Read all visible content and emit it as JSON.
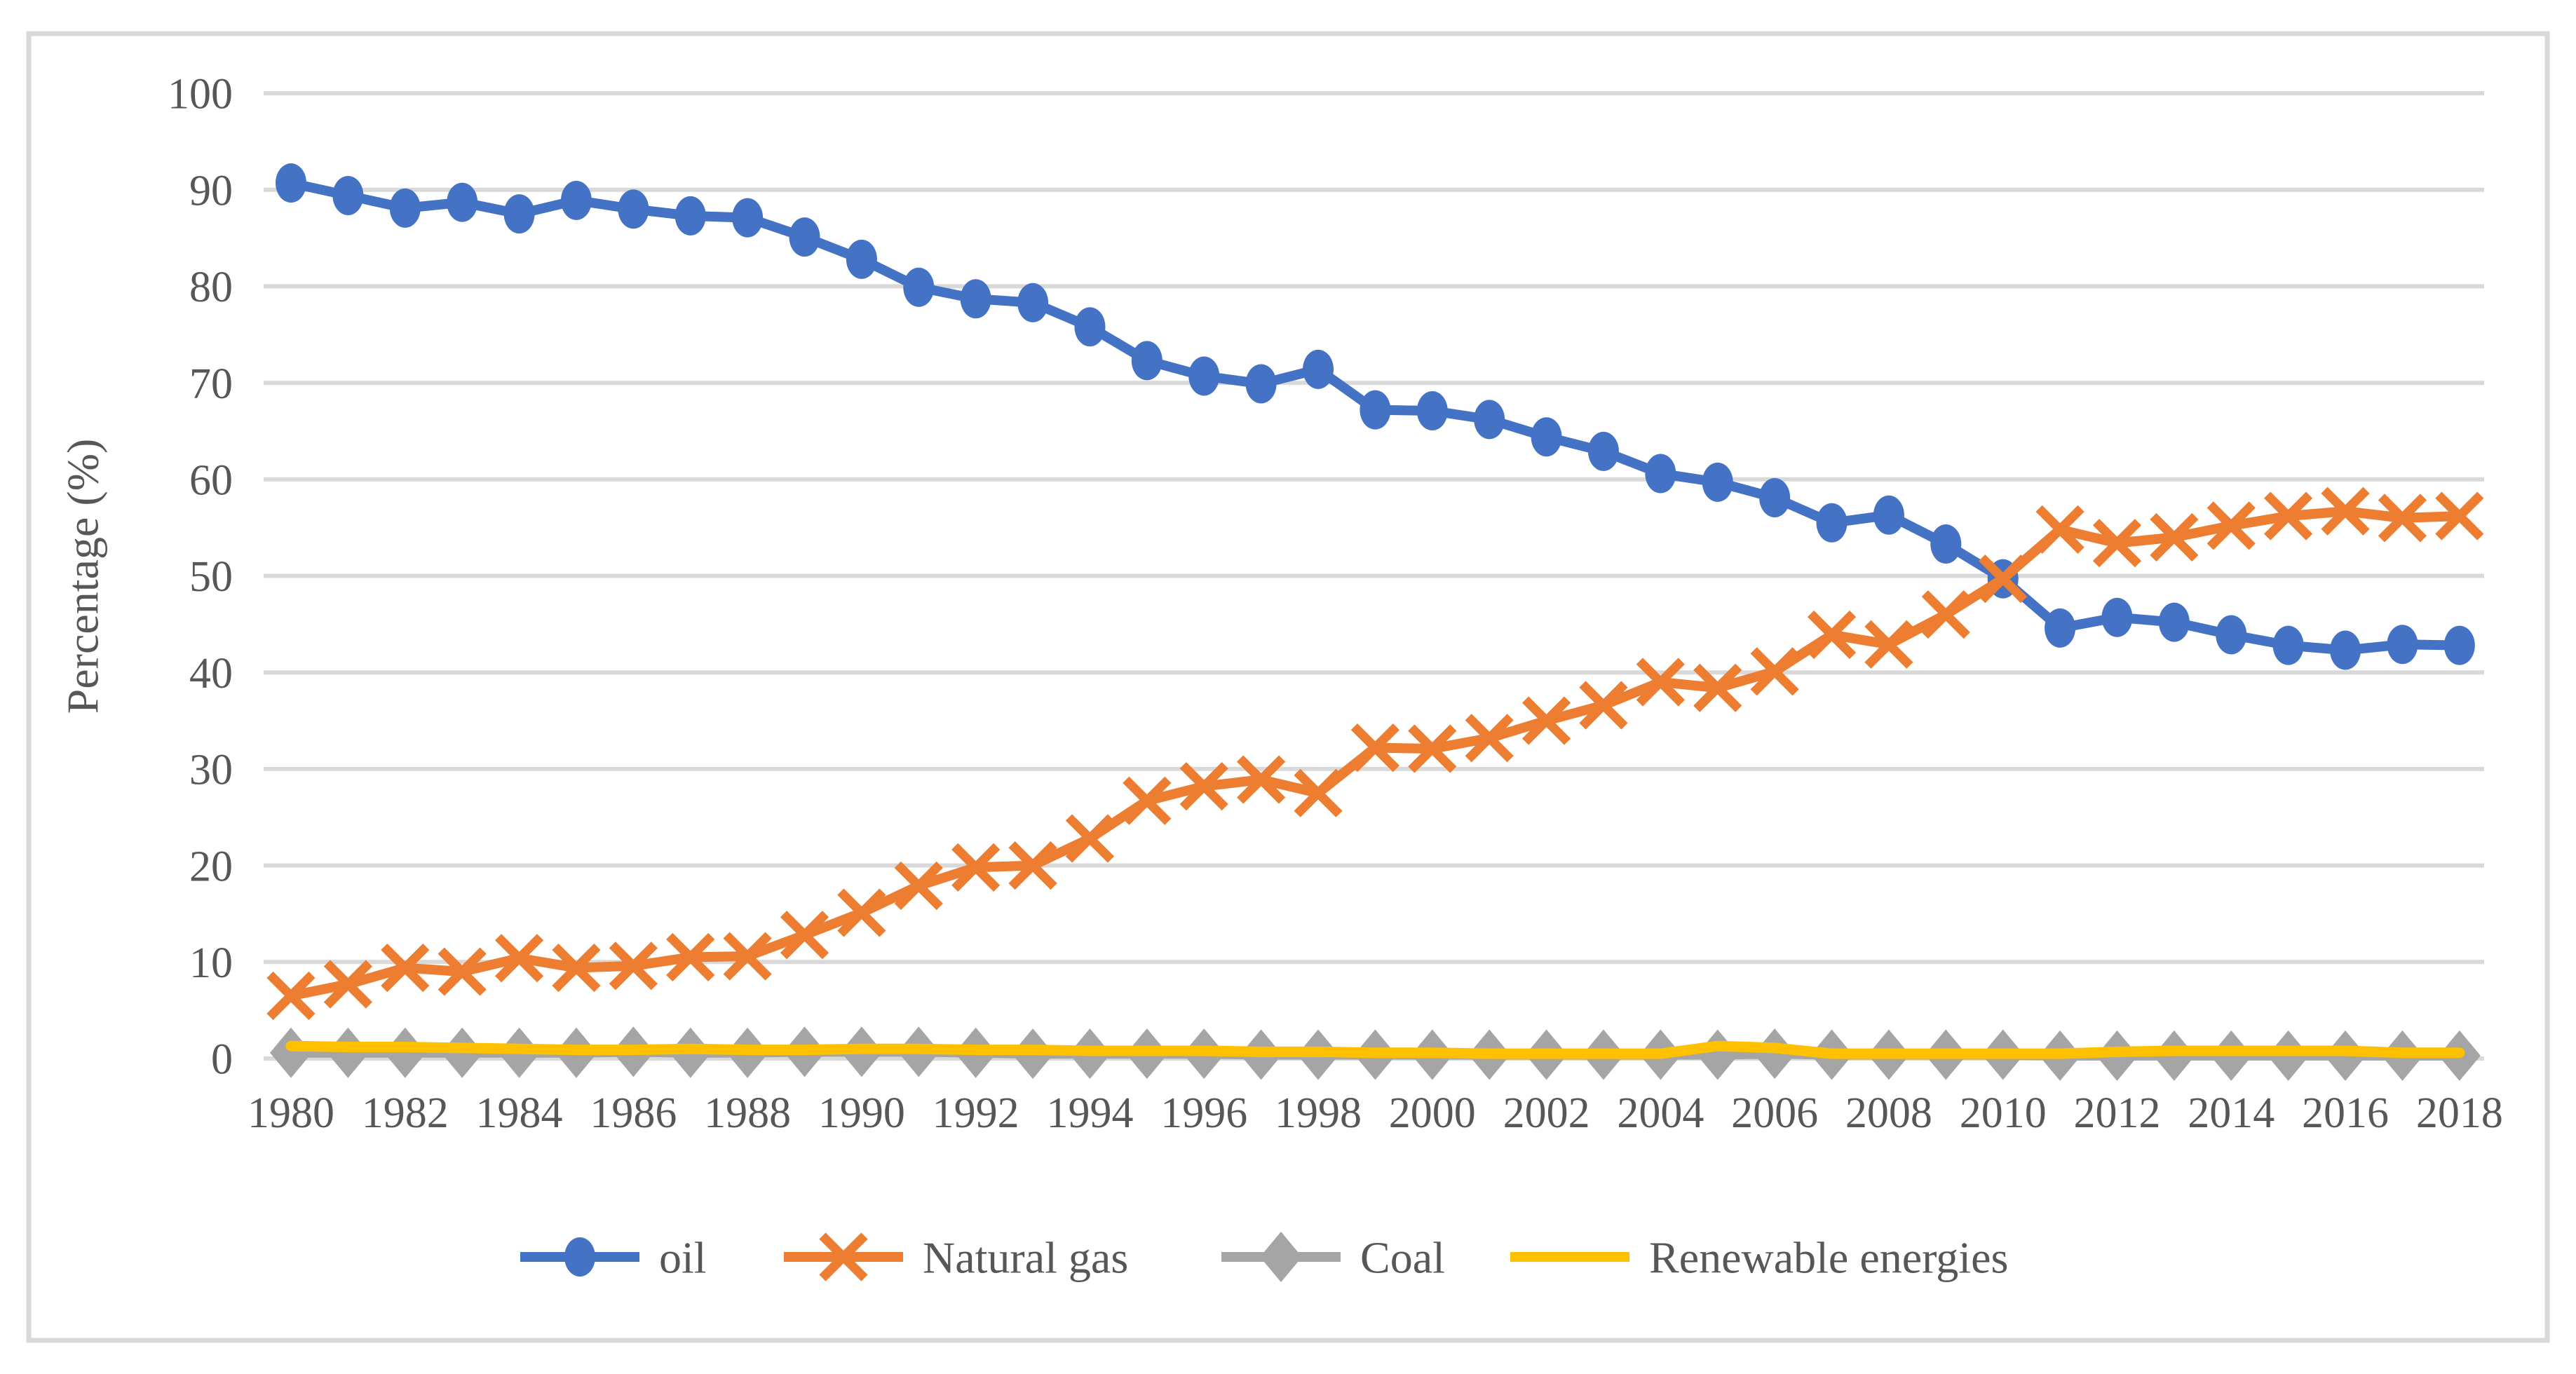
{
  "figure": {
    "background": "#ffffff",
    "border_color": "#d9d9d9"
  },
  "axes": {
    "y_title": "Percentage (%)",
    "y_ticks": [
      0,
      10,
      20,
      30,
      40,
      50,
      60,
      70,
      80,
      90,
      100
    ],
    "x_tick_years": [
      1980,
      1982,
      1984,
      1986,
      1988,
      1990,
      1992,
      1994,
      1996,
      1998,
      2000,
      2002,
      2004,
      2006,
      2008,
      2010,
      2012,
      2014,
      2016,
      2018
    ],
    "tick_text_color": "#575757",
    "gridline_color": "#d9d9d9"
  },
  "legend": {
    "items": [
      {
        "label": "oil",
        "color": "#4472c4",
        "marker": "circle"
      },
      {
        "label": "Natural gas",
        "color": "#ed7d31",
        "marker": "x"
      },
      {
        "label": "Coal",
        "color": "#a5a5a5",
        "marker": "diamond"
      },
      {
        "label": "Renewable energies",
        "color": "#ffc000",
        "marker": "none"
      }
    ]
  },
  "chart_data": {
    "type": "line",
    "title": "",
    "xlabel": "",
    "ylabel": "Percentage (%)",
    "ylim": [
      0,
      100
    ],
    "y_tick_step": 10,
    "grid": true,
    "legend_position": "bottom",
    "x": [
      1980,
      1981,
      1982,
      1983,
      1984,
      1985,
      1986,
      1987,
      1988,
      1989,
      1990,
      1991,
      1992,
      1993,
      1994,
      1995,
      1996,
      1997,
      1998,
      1999,
      2000,
      2001,
      2002,
      2003,
      2004,
      2005,
      2006,
      2007,
      2008,
      2009,
      2010,
      2011,
      2012,
      2013,
      2014,
      2015,
      2016,
      2017,
      2018
    ],
    "series": [
      {
        "name": "oil",
        "color": "#4472c4",
        "marker": "circle",
        "values": [
          90.7,
          89.4,
          88.1,
          88.7,
          87.5,
          88.9,
          88.0,
          87.3,
          87.1,
          85.1,
          82.8,
          79.9,
          78.7,
          78.3,
          75.8,
          72.3,
          70.7,
          69.9,
          71.4,
          67.2,
          67.1,
          66.2,
          64.4,
          62.9,
          60.6,
          59.7,
          58.1,
          55.5,
          56.3,
          53.3,
          49.7,
          44.6,
          45.7,
          45.2,
          43.9,
          42.8,
          42.3,
          42.9,
          42.8
        ]
      },
      {
        "name": "Natural gas",
        "color": "#ed7d31",
        "marker": "x",
        "values": [
          6.5,
          7.7,
          9.4,
          9.0,
          10.4,
          9.4,
          9.6,
          10.5,
          10.6,
          12.8,
          15.1,
          17.9,
          19.8,
          20.0,
          22.8,
          26.7,
          28.2,
          28.9,
          27.5,
          32.2,
          32.1,
          33.2,
          35.0,
          36.6,
          39.0,
          38.4,
          40.1,
          43.9,
          42.9,
          46.0,
          49.7,
          54.8,
          53.4,
          54.0,
          55.2,
          56.2,
          56.7,
          56.0,
          56.2
        ]
      },
      {
        "name": "Coal",
        "color": "#a5a5a5",
        "marker": "diamond",
        "values": [
          0.6,
          0.6,
          0.6,
          0.6,
          0.6,
          0.6,
          0.7,
          0.6,
          0.6,
          0.7,
          0.7,
          0.7,
          0.6,
          0.5,
          0.5,
          0.5,
          0.5,
          0.4,
          0.4,
          0.4,
          0.4,
          0.4,
          0.4,
          0.4,
          0.4,
          0.4,
          0.5,
          0.4,
          0.4,
          0.4,
          0.4,
          0.3,
          0.3,
          0.3,
          0.3,
          0.3,
          0.3,
          0.3,
          0.3
        ]
      },
      {
        "name": "Renewable energies",
        "color": "#ffc000",
        "marker": "none",
        "values": [
          1.3,
          1.2,
          1.2,
          1.1,
          1.0,
          0.9,
          0.9,
          1.0,
          0.9,
          0.9,
          1.0,
          1.0,
          0.9,
          0.9,
          0.8,
          0.8,
          0.8,
          0.7,
          0.7,
          0.6,
          0.6,
          0.5,
          0.5,
          0.5,
          0.5,
          1.3,
          1.1,
          0.5,
          0.5,
          0.5,
          0.5,
          0.5,
          0.7,
          0.8,
          0.8,
          0.8,
          0.8,
          0.6,
          0.6
        ]
      }
    ]
  }
}
